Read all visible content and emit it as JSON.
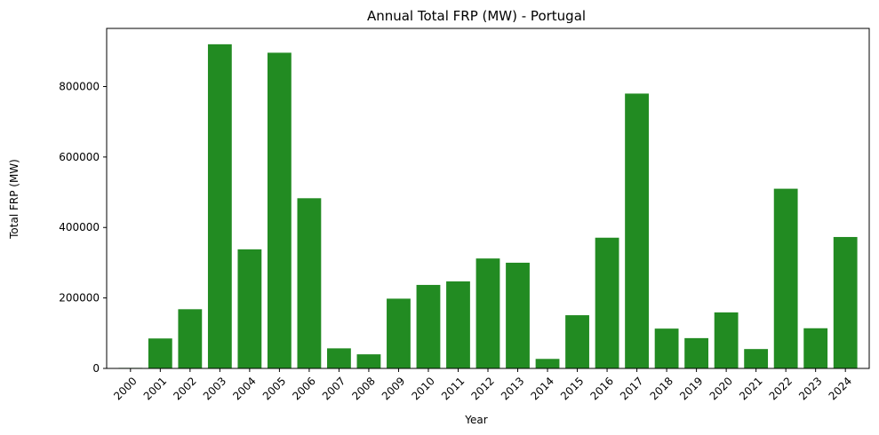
{
  "chart_data": {
    "type": "bar",
    "title": "Annual Total FRP (MW) - Portugal",
    "xlabel": "Year",
    "ylabel": "Total FRP (MW)",
    "ylim": [
      0,
      965000
    ],
    "yticks": [
      0,
      200000,
      400000,
      600000,
      800000
    ],
    "ytick_labels": [
      "0",
      "200000",
      "400000",
      "600000",
      "800000"
    ],
    "grid": false,
    "bar_color": "#228B22",
    "categories": [
      "2000",
      "2001",
      "2002",
      "2003",
      "2004",
      "2005",
      "2006",
      "2007",
      "2008",
      "2009",
      "2010",
      "2011",
      "2012",
      "2013",
      "2014",
      "2015",
      "2016",
      "2017",
      "2018",
      "2019",
      "2020",
      "2021",
      "2022",
      "2023",
      "2024"
    ],
    "values": [
      1500,
      85000,
      168000,
      920000,
      338000,
      896000,
      483000,
      57000,
      40000,
      198000,
      237000,
      247000,
      312000,
      300000,
      27000,
      151000,
      371000,
      780000,
      113000,
      86000,
      159000,
      55000,
      510000,
      114000,
      373000
    ]
  }
}
